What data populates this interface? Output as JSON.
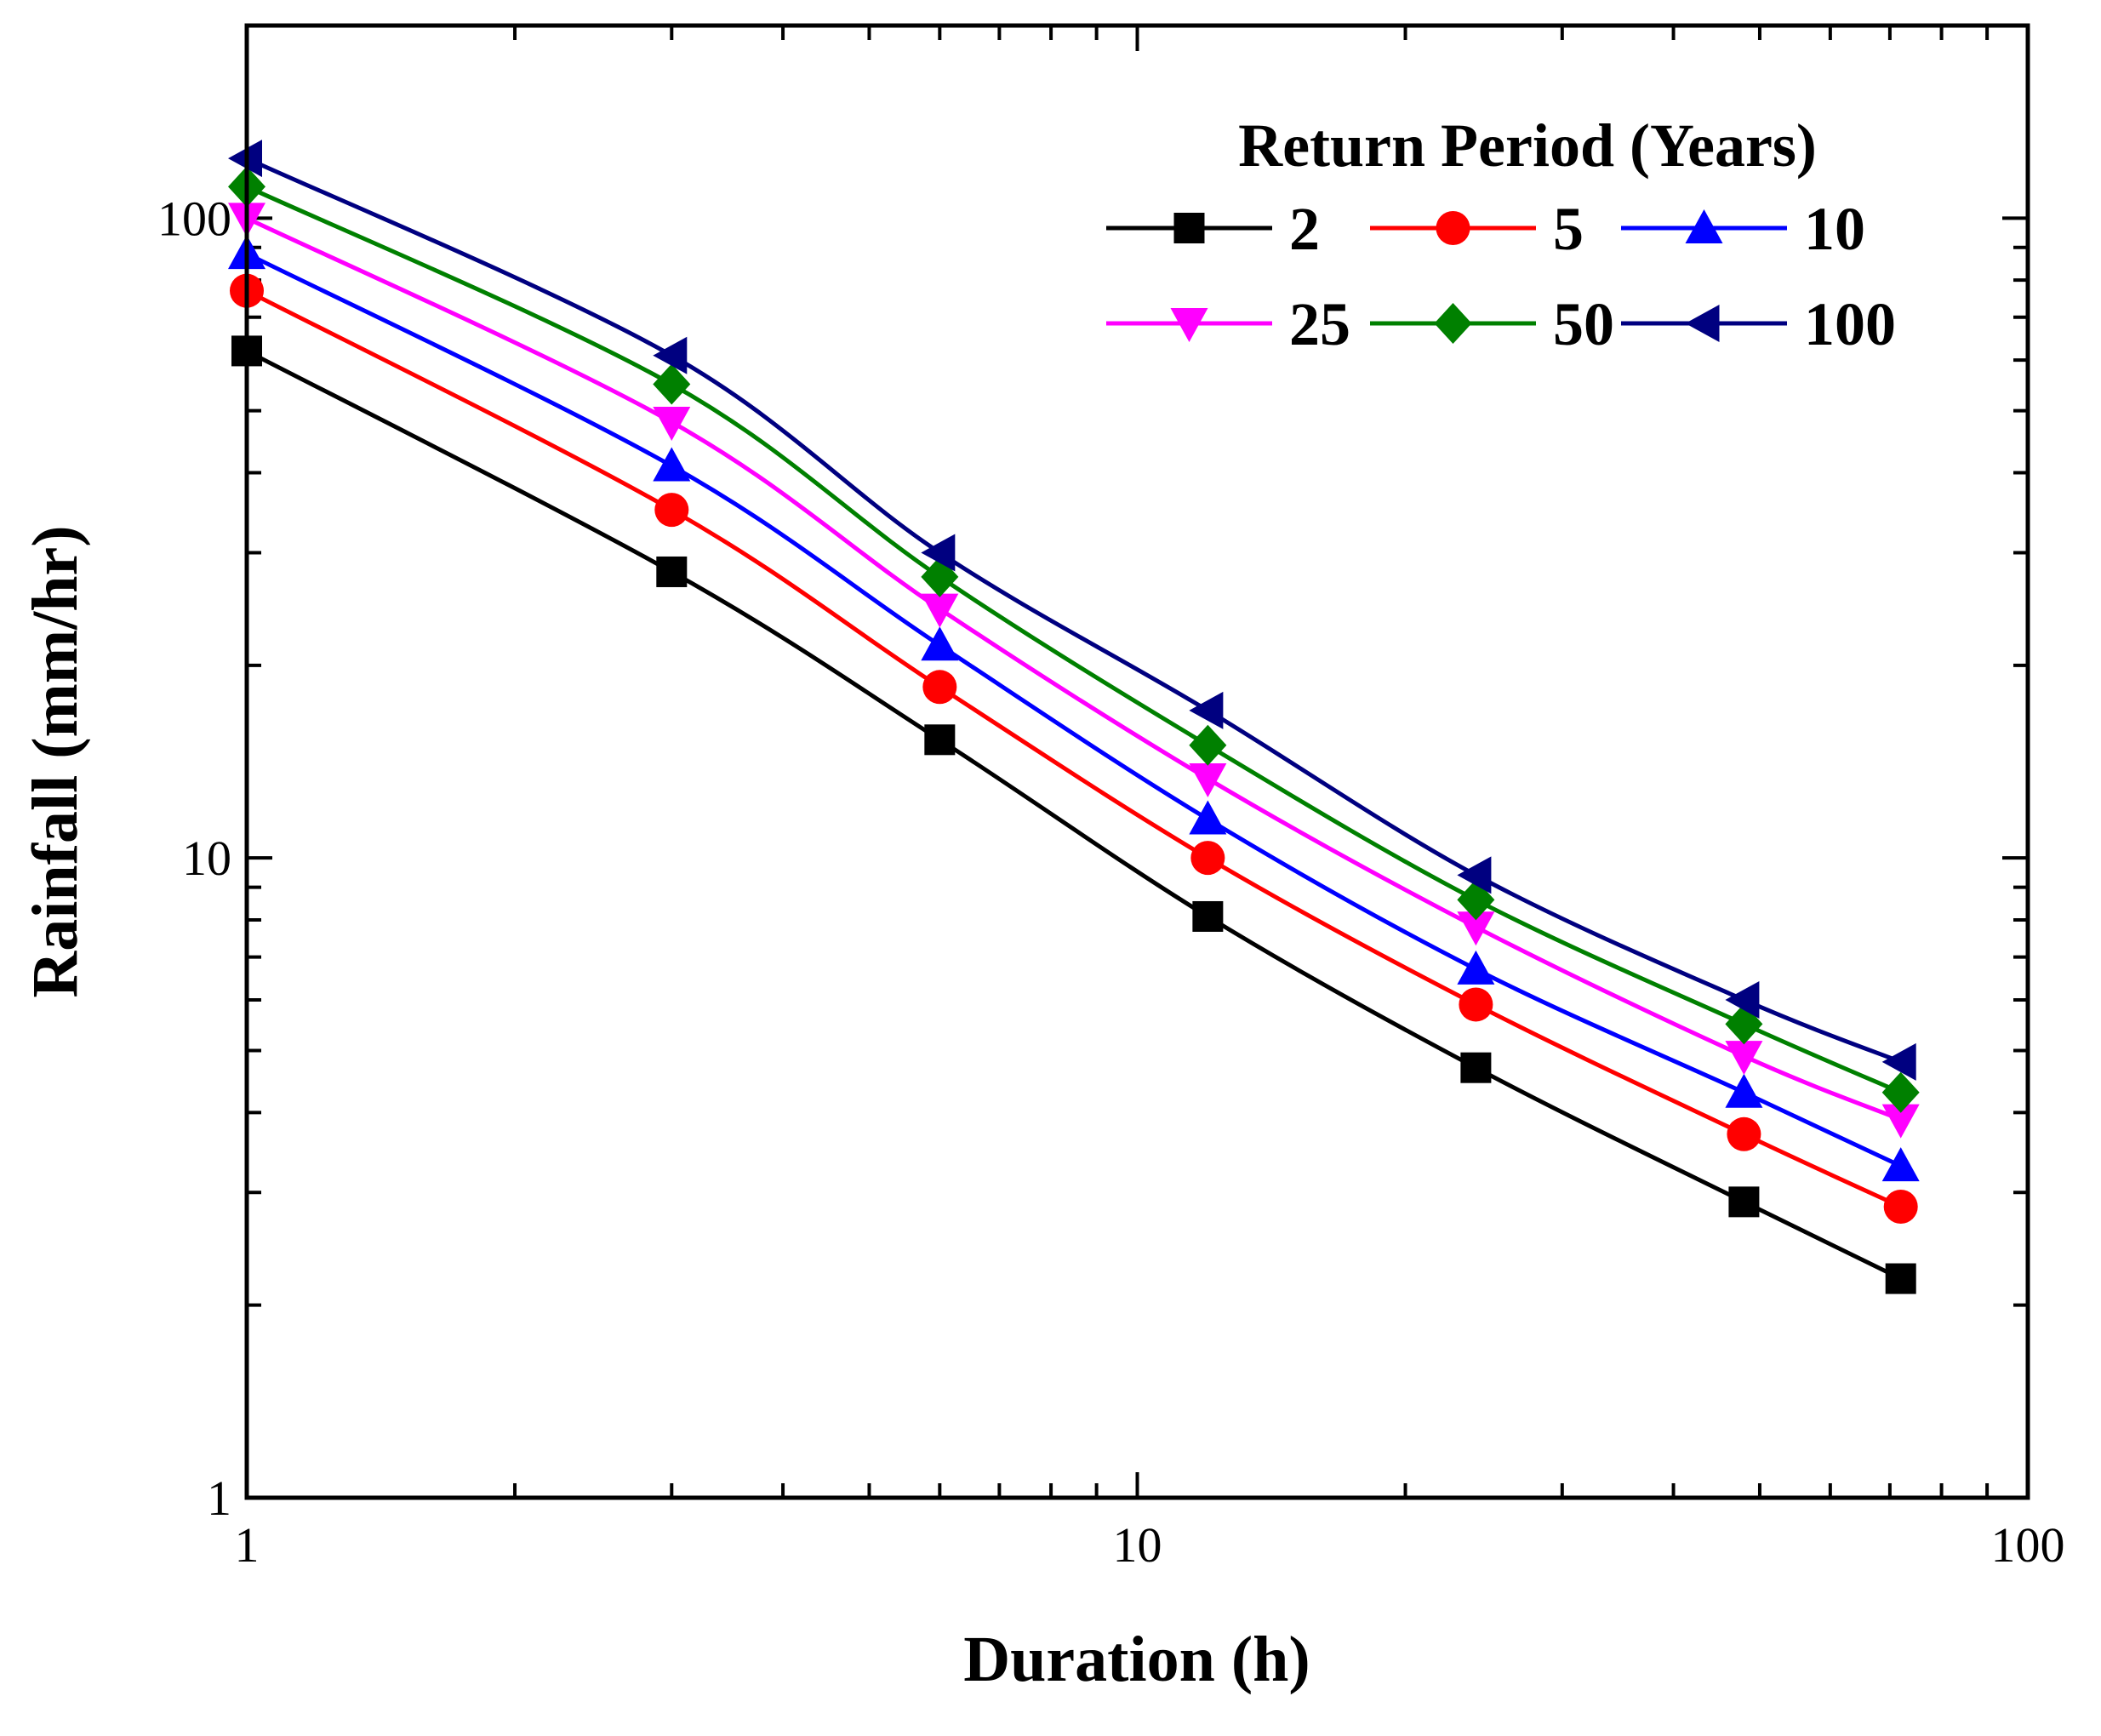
{
  "chart_data": {
    "type": "line",
    "xscale": "log",
    "yscale": "log",
    "x": [
      1,
      3,
      6,
      12,
      24,
      48,
      72
    ],
    "xlim": [
      1,
      100
    ],
    "ylim": [
      1,
      200
    ],
    "xticks": [
      1,
      10,
      100
    ],
    "yticks": [
      1,
      10,
      100
    ],
    "xtick_labels": [
      "1",
      "10",
      "100"
    ],
    "ytick_labels": [
      "1",
      "10",
      "100"
    ],
    "xlabel": "Duration (h)",
    "ylabel": "Rainfall (mm/hr)",
    "legend_title": "Return Period (Years)",
    "legend_position": "top-right",
    "series": [
      {
        "name": "2",
        "color": "#000000",
        "marker": "square",
        "values": [
          62,
          28,
          15.3,
          8.1,
          4.7,
          2.9,
          2.2
        ]
      },
      {
        "name": "5",
        "color": "#ff0000",
        "marker": "circle",
        "values": [
          77,
          35,
          18.5,
          10,
          5.9,
          3.7,
          2.85
        ]
      },
      {
        "name": "10",
        "color": "#0000ff",
        "marker": "triangle-up",
        "values": [
          88,
          41,
          21.5,
          11.5,
          6.7,
          4.3,
          3.3
        ]
      },
      {
        "name": "25",
        "color": "#ff00ff",
        "marker": "triangle-down",
        "values": [
          100,
          48,
          24.5,
          13.3,
          7.8,
          4.9,
          3.9
        ]
      },
      {
        "name": "50",
        "color": "#008000",
        "marker": "diamond",
        "values": [
          112,
          55,
          27.5,
          15,
          8.6,
          5.5,
          4.3
        ]
      },
      {
        "name": "100",
        "color": "#000080",
        "marker": "triangle-left",
        "values": [
          124,
          61,
          30,
          17,
          9.4,
          6,
          4.8
        ]
      }
    ]
  }
}
